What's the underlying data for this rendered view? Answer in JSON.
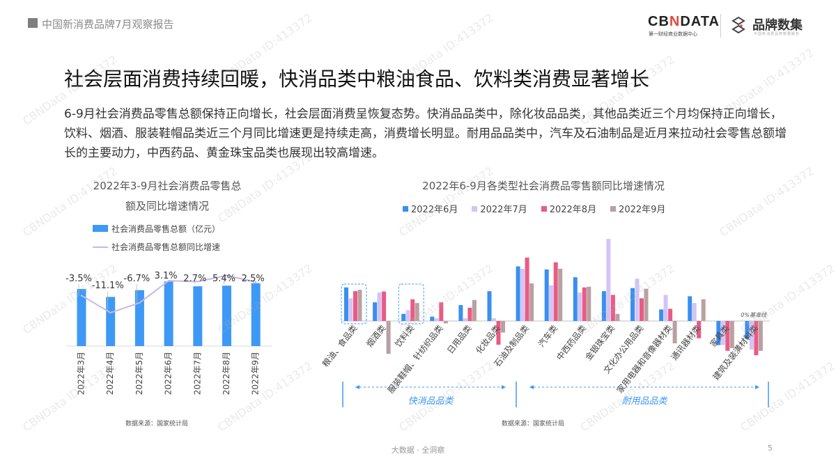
{
  "header": {
    "report_title": "中国新消费品牌7月观察报告"
  },
  "logos": {
    "cbndata": "CBNDATA",
    "cbndata_sub": "第一财经商业数据中心",
    "brand": "品牌数集",
    "brand_sub": "中国新消费品牌数据服务"
  },
  "title": "社会层面消费持续回暖，快消品类中粮油食品、饮料类消费显著增长",
  "paragraph": "6-9月社会消费品零售总额保持正向增长，社会层面消费呈恢复态势。快消品品类中，除化妆品品类，其他品类近三个月均保持正向增长，饮料、烟酒、服装鞋帽品类近三个月同比增速更是持续走高，消费增长明显。耐用品品类中，汽车及石油制品是近月来拉动社会零售总额增长的主要动力，中西药品、黄金珠宝品类也展现出较高增速。",
  "watermark": "CBNData ID:413372",
  "footer": {
    "slogan": "大数据 · 全洞察",
    "page": "5"
  },
  "colors": {
    "bar_blue": "#3d99f5",
    "line_purple": "#c9b6ea",
    "jun": "#3a8ff0",
    "jul": "#d3c4f5",
    "aug": "#ea5b84",
    "sep": "#b9a0a3",
    "accent": "#3d99f5"
  },
  "chart_data": [
    {
      "type": "bar+line",
      "title": "2022年3-9月社会消费品零售总额及同比增速情况",
      "title_lines": [
        "2022年3-9月社会消费品零售总",
        "额及同比增速情况"
      ],
      "categories": [
        "2022年3月",
        "2022年4月",
        "2022年5月",
        "2022年6月",
        "2022年7月",
        "2022年8月",
        "2022年9月"
      ],
      "series": [
        {
          "name": "社会消费品零售总额（亿元）",
          "type": "bar",
          "values": [
            34233,
            29483,
            33547,
            38742,
            35870,
            36258,
            37745
          ]
        },
        {
          "name": "社会消费品零售总额同比增速",
          "type": "line",
          "values": [
            -3.5,
            -11.1,
            -6.7,
            3.1,
            2.7,
            5.4,
            2.5
          ],
          "labels": [
            "-3.5%",
            "-11.1%",
            "-6.7%",
            "3.1%",
            "2.7%",
            "5.4%",
            "2.5%"
          ]
        }
      ],
      "legend": "top",
      "source": "数据来源：国家统计局"
    },
    {
      "type": "bar",
      "title": "2022年6-9月各类型社会消费品零售额同比增速情况",
      "categories": [
        "粮油、食品类",
        "烟酒类",
        "饮料类",
        "服装鞋帽、针纺织品类",
        "日用品类",
        "化妆品类",
        "石油及制品类",
        "汽车类",
        "中西药品类",
        "金银珠宝类",
        "文化办公用品类",
        "家用电器和音像器材类",
        "通讯器材类",
        "家具类",
        "建筑及装潢材料类"
      ],
      "series": [
        {
          "name": "2022年6月",
          "values": [
            9.9,
            5.5,
            2.1,
            1.3,
            4.7,
            8.8,
            16.1,
            15.2,
            12.9,
            8.8,
            9.7,
            3.4,
            7.3,
            -7.1,
            -5.3
          ]
        },
        {
          "name": "2022年7月",
          "values": [
            6.7,
            8.4,
            3.2,
            0.8,
            0.8,
            0.8,
            15.4,
            10.5,
            8.4,
            24.2,
            12.5,
            7.7,
            5.3,
            -7.1,
            -8.4
          ]
        },
        {
          "name": "2022年8月",
          "values": [
            8.8,
            8.7,
            6.4,
            5.5,
            3.9,
            -7.0,
            18.7,
            17.3,
            9.9,
            7.7,
            6.7,
            3.6,
            -5.1,
            -8.8,
            -10.1
          ]
        },
        {
          "name": "2022年9月",
          "values": [
            9.2,
            -9.7,
            5.3,
            -0.7,
            6.2,
            -3.4,
            11.1,
            15.4,
            10.1,
            2.1,
            9.5,
            -6.6,
            6.4,
            -8.0,
            -8.8
          ]
        }
      ],
      "baseline_label": "0%基准线",
      "highlighted": [
        "粮油、食品类",
        "饮料类"
      ],
      "groups": [
        {
          "label": "快消品品类",
          "from": "粮油、食品类",
          "to": "化妆品类"
        },
        {
          "label": "耐用品品类",
          "from": "石油及制品类",
          "to": "建筑及装潢材料类"
        }
      ],
      "legend": "top",
      "source": "数据来源：国家统计局"
    }
  ]
}
